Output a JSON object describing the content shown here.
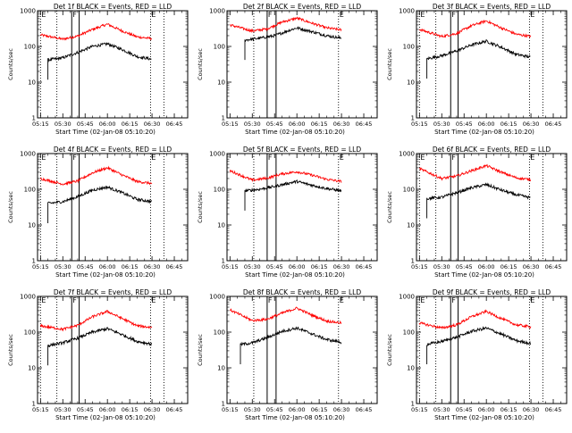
{
  "colors": {
    "events": "#000000",
    "lld": "#ff0000",
    "frame": "#000000",
    "background": "#ffffff"
  },
  "chart_data": [
    {
      "type": "line",
      "title": "Det 1f BLACK = Events, RED = LLD",
      "xlabel": "Start Time (02-Jan-08 05:10:20)",
      "ylabel": "Counts/sec",
      "yscale": "log",
      "ylim": [
        1,
        1000
      ],
      "xlim": [
        "05:13",
        "06:54"
      ],
      "xticks": [
        "05:15",
        "05:30",
        "05:45",
        "06:00",
        "06:15",
        "06:30",
        "06:45"
      ],
      "yticks": [
        "1",
        "10",
        "100",
        "1000"
      ],
      "markers": [
        {
          "label": "E",
          "x": "05:15",
          "style": "dotted"
        },
        {
          "label": "",
          "x": "05:26",
          "style": "dotted"
        },
        {
          "label": "F",
          "x": "05:36",
          "style": "solid"
        },
        {
          "label": "",
          "x": "05:41",
          "style": "solid"
        },
        {
          "label": "E",
          "x": "06:29",
          "style": "dotted"
        },
        {
          "label": "",
          "x": "06:38",
          "style": "dotted"
        }
      ],
      "series": [
        {
          "name": "Events",
          "start": "05:20",
          "x": [
            "05:20",
            "05:30",
            "05:40",
            "05:50",
            "06:00",
            "06:10",
            "06:20",
            "06:30"
          ],
          "values": [
            42,
            48,
            68,
            100,
            118,
            82,
            52,
            44
          ]
        },
        {
          "name": "LLD",
          "start": "05:15",
          "x": [
            "05:15",
            "05:30",
            "05:40",
            "05:50",
            "06:00",
            "06:10",
            "06:20",
            "06:30"
          ],
          "values": [
            210,
            160,
            195,
            300,
            420,
            270,
            185,
            165
          ]
        }
      ]
    },
    {
      "type": "line",
      "title": "Det 2f BLACK = Events, RED = LLD",
      "xlabel": "Start Time (02-Jan-08 05:10:20)",
      "ylabel": "Counts/sec",
      "yscale": "log",
      "ylim": [
        1,
        1000
      ],
      "xlim": [
        "05:13",
        "06:54"
      ],
      "xticks": [
        "05:15",
        "05:30",
        "05:45",
        "06:00",
        "06:15",
        "06:30",
        "06:45"
      ],
      "yticks": [
        "1",
        "10",
        "100",
        "1000"
      ],
      "markers": [
        {
          "label": "",
          "x": "05:31",
          "style": "dotted"
        },
        {
          "label": "F",
          "x": "05:40",
          "style": "solid"
        },
        {
          "label": "",
          "x": "05:46",
          "style": "solid"
        },
        {
          "label": "E",
          "x": "06:28",
          "style": "dotted"
        }
      ],
      "series": [
        {
          "name": "Events",
          "start": "05:25",
          "x": [
            "05:25",
            "05:35",
            "05:45",
            "05:55",
            "06:00",
            "06:10",
            "06:20",
            "06:30"
          ],
          "values": [
            150,
            170,
            200,
            285,
            330,
            260,
            200,
            170
          ]
        },
        {
          "name": "LLD",
          "start": "05:15",
          "x": [
            "05:15",
            "05:30",
            "05:40",
            "05:50",
            "06:00",
            "06:10",
            "06:20",
            "06:30"
          ],
          "values": [
            400,
            270,
            310,
            480,
            620,
            450,
            330,
            290
          ]
        }
      ]
    },
    {
      "type": "line",
      "title": "Det 3f BLACK = Events, RED = LLD",
      "xlabel": "Start Time (02-Jan-08 05:10:20)",
      "ylabel": "Counts/sec",
      "yscale": "log",
      "ylim": [
        1,
        1000
      ],
      "xlim": [
        "05:13",
        "06:54"
      ],
      "xticks": [
        "05:15",
        "05:30",
        "05:45",
        "06:00",
        "06:15",
        "06:30",
        "06:45"
      ],
      "yticks": [
        "1",
        "10",
        "100",
        "1000"
      ],
      "markers": [
        {
          "label": "E",
          "x": "05:15",
          "style": "dotted"
        },
        {
          "label": "",
          "x": "05:26",
          "style": "dotted"
        },
        {
          "label": "F",
          "x": "05:36",
          "style": "solid"
        },
        {
          "label": "",
          "x": "05:41",
          "style": "solid"
        },
        {
          "label": "E",
          "x": "06:29",
          "style": "dotted"
        },
        {
          "label": "",
          "x": "06:38",
          "style": "dotted"
        }
      ],
      "series": [
        {
          "name": "Events",
          "start": "05:20",
          "x": [
            "05:20",
            "05:30",
            "05:40",
            "05:50",
            "06:00",
            "06:10",
            "06:20",
            "06:30"
          ],
          "values": [
            45,
            55,
            75,
            110,
            140,
            95,
            60,
            50
          ]
        },
        {
          "name": "LLD",
          "start": "05:15",
          "x": [
            "05:15",
            "05:30",
            "05:40",
            "05:50",
            "06:00",
            "06:10",
            "06:20",
            "06:30"
          ],
          "values": [
            300,
            190,
            230,
            380,
            520,
            330,
            220,
            190
          ]
        }
      ]
    },
    {
      "type": "line",
      "title": "Det 4f BLACK = Events, RED = LLD",
      "xlabel": "Start Time (02-Jan-08 05:10:20)",
      "ylabel": "Counts/sec",
      "yscale": "log",
      "ylim": [
        1,
        1000
      ],
      "xlim": [
        "05:13",
        "06:54"
      ],
      "xticks": [
        "05:15",
        "05:30",
        "05:45",
        "06:00",
        "06:15",
        "06:30",
        "06:45"
      ],
      "yticks": [
        "1",
        "10",
        "100",
        "1000"
      ],
      "markers": [
        {
          "label": "E",
          "x": "05:15",
          "style": "dotted"
        },
        {
          "label": "",
          "x": "05:26",
          "style": "dotted"
        },
        {
          "label": "F",
          "x": "05:36",
          "style": "solid"
        },
        {
          "label": "",
          "x": "05:41",
          "style": "solid"
        },
        {
          "label": "E",
          "x": "06:29",
          "style": "dotted"
        },
        {
          "label": "",
          "x": "06:38",
          "style": "dotted"
        }
      ],
      "series": [
        {
          "name": "Events",
          "start": "05:20",
          "x": [
            "05:20",
            "05:30",
            "05:40",
            "05:50",
            "06:00",
            "06:10",
            "06:20",
            "06:30"
          ],
          "values": [
            40,
            45,
            62,
            95,
            115,
            80,
            52,
            45
          ]
        },
        {
          "name": "LLD",
          "start": "05:15",
          "x": [
            "05:15",
            "05:30",
            "05:40",
            "05:50",
            "06:00",
            "06:10",
            "06:20",
            "06:30"
          ],
          "values": [
            200,
            140,
            170,
            290,
            400,
            250,
            165,
            145
          ]
        }
      ]
    },
    {
      "type": "line",
      "title": "Det 5f BLACK = Events, RED = LLD",
      "xlabel": "Start Time (02-Jan-08 05:10:20)",
      "ylabel": "Counts/sec",
      "yscale": "log",
      "ylim": [
        1,
        1000
      ],
      "xlim": [
        "05:13",
        "06:54"
      ],
      "xticks": [
        "05:15",
        "05:30",
        "05:45",
        "06:00",
        "06:15",
        "06:30",
        "06:45"
      ],
      "yticks": [
        "1",
        "10",
        "100",
        "1000"
      ],
      "markers": [
        {
          "label": "",
          "x": "05:31",
          "style": "dotted"
        },
        {
          "label": "F",
          "x": "05:40",
          "style": "solid"
        },
        {
          "label": "",
          "x": "05:46",
          "style": "solid"
        },
        {
          "label": "E",
          "x": "06:28",
          "style": "dotted"
        }
      ],
      "series": [
        {
          "name": "Events",
          "start": "05:25",
          "x": [
            "05:25",
            "05:35",
            "05:45",
            "05:55",
            "06:00",
            "06:10",
            "06:20",
            "06:30"
          ],
          "values": [
            90,
            100,
            120,
            150,
            165,
            130,
            105,
            90
          ]
        },
        {
          "name": "LLD",
          "start": "05:15",
          "x": [
            "05:15",
            "05:30",
            "05:40",
            "05:50",
            "06:00",
            "06:10",
            "06:20",
            "06:30"
          ],
          "values": [
            330,
            180,
            205,
            270,
            310,
            250,
            190,
            165
          ]
        }
      ]
    },
    {
      "type": "line",
      "title": "Det 6f BLACK = Events, RED = LLD",
      "xlabel": "Start Time (02-Jan-08 05:10:20)",
      "ylabel": "Counts/sec",
      "yscale": "log",
      "ylim": [
        1,
        1000
      ],
      "xlim": [
        "05:13",
        "06:54"
      ],
      "xticks": [
        "05:15",
        "05:30",
        "05:45",
        "06:00",
        "06:15",
        "06:30",
        "06:45"
      ],
      "yticks": [
        "1",
        "10",
        "100",
        "1000"
      ],
      "markers": [
        {
          "label": "E",
          "x": "05:15",
          "style": "dotted"
        },
        {
          "label": "",
          "x": "05:26",
          "style": "dotted"
        },
        {
          "label": "F",
          "x": "05:36",
          "style": "solid"
        },
        {
          "label": "",
          "x": "05:41",
          "style": "solid"
        },
        {
          "label": "E",
          "x": "06:29",
          "style": "dotted"
        },
        {
          "label": "",
          "x": "06:38",
          "style": "dotted"
        }
      ],
      "series": [
        {
          "name": "Events",
          "start": "05:20",
          "x": [
            "05:20",
            "05:30",
            "05:40",
            "05:50",
            "06:00",
            "06:10",
            "06:20",
            "06:30"
          ],
          "values": [
            55,
            60,
            80,
            110,
            135,
            95,
            70,
            58
          ]
        },
        {
          "name": "LLD",
          "start": "05:15",
          "x": [
            "05:15",
            "05:30",
            "05:40",
            "05:50",
            "06:00",
            "06:10",
            "06:20",
            "06:30"
          ],
          "values": [
            380,
            200,
            235,
            330,
            460,
            300,
            210,
            185
          ]
        }
      ]
    },
    {
      "type": "line",
      "title": "Det 7f BLACK = Events, RED = LLD",
      "xlabel": "Start Time (02-Jan-08 05:10:20)",
      "ylabel": "Counts/sec",
      "yscale": "log",
      "ylim": [
        1,
        1000
      ],
      "xlim": [
        "05:13",
        "06:54"
      ],
      "xticks": [
        "05:15",
        "05:30",
        "05:45",
        "06:00",
        "06:15",
        "06:30",
        "06:45"
      ],
      "yticks": [
        "1",
        "10",
        "100",
        "1000"
      ],
      "markers": [
        {
          "label": "E",
          "x": "05:15",
          "style": "dotted"
        },
        {
          "label": "",
          "x": "05:26",
          "style": "dotted"
        },
        {
          "label": "F",
          "x": "05:36",
          "style": "solid"
        },
        {
          "label": "",
          "x": "05:41",
          "style": "solid"
        },
        {
          "label": "E",
          "x": "06:29",
          "style": "dotted"
        },
        {
          "label": "",
          "x": "06:38",
          "style": "dotted"
        }
      ],
      "series": [
        {
          "name": "Events",
          "start": "05:20",
          "x": [
            "05:20",
            "05:30",
            "05:40",
            "05:50",
            "06:00",
            "06:10",
            "06:20",
            "06:30"
          ],
          "values": [
            42,
            50,
            68,
            100,
            125,
            85,
            55,
            46
          ]
        },
        {
          "name": "LLD",
          "start": "05:15",
          "x": [
            "05:15",
            "05:30",
            "05:40",
            "05:50",
            "06:00",
            "06:10",
            "06:20",
            "06:30"
          ],
          "values": [
            150,
            120,
            155,
            270,
            380,
            240,
            150,
            135
          ]
        }
      ]
    },
    {
      "type": "line",
      "title": "Det 8f BLACK = Events, RED = LLD",
      "xlabel": "Start Time (02-Jan-08 05:10:20)",
      "ylabel": "Counts/sec",
      "yscale": "log",
      "ylim": [
        1,
        1000
      ],
      "xlim": [
        "05:13",
        "06:54"
      ],
      "xticks": [
        "05:15",
        "05:30",
        "05:45",
        "06:00",
        "06:15",
        "06:30",
        "06:45"
      ],
      "yticks": [
        "1",
        "10",
        "100",
        "1000"
      ],
      "markers": [
        {
          "label": "",
          "x": "05:31",
          "style": "dotted"
        },
        {
          "label": "F",
          "x": "05:40",
          "style": "solid"
        },
        {
          "label": "",
          "x": "05:46",
          "style": "solid"
        },
        {
          "label": "E",
          "x": "06:28",
          "style": "dotted"
        }
      ],
      "series": [
        {
          "name": "Events",
          "start": "05:22",
          "x": [
            "05:22",
            "05:30",
            "05:40",
            "05:50",
            "06:00",
            "06:10",
            "06:20",
            "06:30"
          ],
          "values": [
            45,
            50,
            70,
            105,
            130,
            90,
            62,
            52
          ]
        },
        {
          "name": "LLD",
          "start": "05:15",
          "x": [
            "05:15",
            "05:30",
            "05:40",
            "05:50",
            "06:00",
            "06:10",
            "06:20",
            "06:30"
          ],
          "values": [
            420,
            210,
            230,
            340,
            470,
            300,
            205,
            180
          ]
        }
      ]
    },
    {
      "type": "line",
      "title": "Det 9f BLACK = Events, RED = LLD",
      "xlabel": "Start Time (02-Jan-08 05:10:20)",
      "ylabel": "Counts/sec",
      "yscale": "log",
      "ylim": [
        1,
        1000
      ],
      "xlim": [
        "05:13",
        "06:54"
      ],
      "xticks": [
        "05:15",
        "05:30",
        "05:45",
        "06:00",
        "06:15",
        "06:30",
        "06:45"
      ],
      "yticks": [
        "1",
        "10",
        "100",
        "1000"
      ],
      "markers": [
        {
          "label": "E",
          "x": "05:15",
          "style": "dotted"
        },
        {
          "label": "",
          "x": "05:26",
          "style": "dotted"
        },
        {
          "label": "F",
          "x": "05:36",
          "style": "solid"
        },
        {
          "label": "",
          "x": "05:41",
          "style": "solid"
        },
        {
          "label": "E",
          "x": "06:29",
          "style": "dotted"
        },
        {
          "label": "",
          "x": "06:38",
          "style": "dotted"
        }
      ],
      "series": [
        {
          "name": "Events",
          "start": "05:20",
          "x": [
            "05:20",
            "05:30",
            "05:40",
            "05:50",
            "06:00",
            "06:10",
            "06:20",
            "06:30"
          ],
          "values": [
            45,
            55,
            72,
            105,
            130,
            88,
            58,
            48
          ]
        },
        {
          "name": "LLD",
          "start": "05:15",
          "x": [
            "05:15",
            "05:30",
            "05:40",
            "05:50",
            "06:00",
            "06:10",
            "06:20",
            "06:30"
          ],
          "values": [
            180,
            130,
            160,
            270,
            380,
            240,
            160,
            140
          ]
        }
      ]
    }
  ]
}
